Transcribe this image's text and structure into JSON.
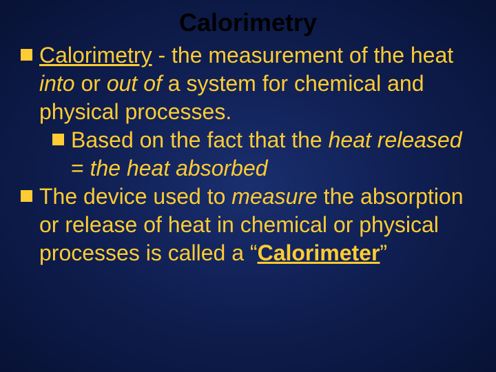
{
  "slide": {
    "title": "Calorimetry",
    "title_color": "#000000",
    "title_fontsize": 36,
    "bullet_color": "#ffcc33",
    "body_color": "#ffcc33",
    "body_fontsize": 32,
    "background_gradient": [
      "#1a2f6f",
      "#0f1e50",
      "#081235"
    ],
    "bullets": [
      {
        "level": 1,
        "segments": [
          {
            "text": "Calorimetry",
            "underline": true
          },
          {
            "text": " - the measurement of the heat "
          },
          {
            "text": "into",
            "italic": true
          },
          {
            "text": " or "
          },
          {
            "text": "out of",
            "italic": true
          },
          {
            "text": " a system for chemical and physical processes."
          }
        ]
      },
      {
        "level": 2,
        "segments": [
          {
            "text": "Based on the fact that the "
          },
          {
            "text": "heat released",
            "italic": true
          },
          {
            "text": " = "
          },
          {
            "text": "the heat absorbed",
            "italic": true
          }
        ]
      },
      {
        "level": 1,
        "segments": [
          {
            "text": "The device used to "
          },
          {
            "text": "measure",
            "italic": true
          },
          {
            "text": " the absorption or release of heat in chemical or physical processes is called a “"
          },
          {
            "text": "Calorimeter",
            "bold": true,
            "underline": true
          },
          {
            "text": "”"
          }
        ]
      }
    ]
  }
}
